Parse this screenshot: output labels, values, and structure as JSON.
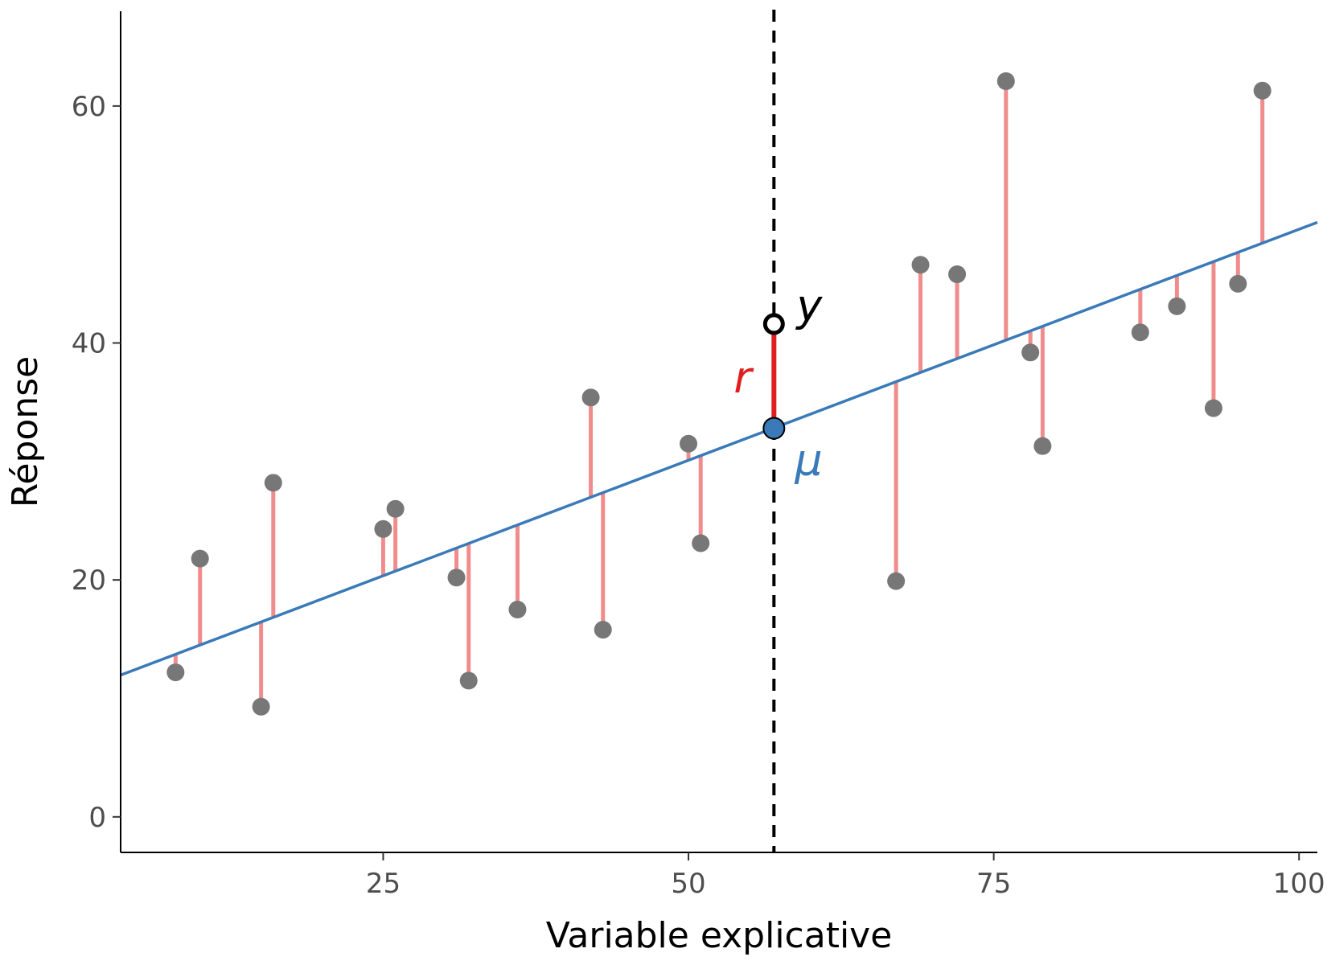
{
  "chart_data": {
    "type": "scatter",
    "title": "",
    "xlabel": "Variable explicative",
    "ylabel": "Réponse",
    "xlim": [
      3.5,
      101.5
    ],
    "ylim": [
      -3,
      68
    ],
    "x_ticks": [
      25,
      50,
      75,
      100
    ],
    "x_tick_labels": [
      "25",
      "50",
      "75",
      "100"
    ],
    "y_ticks": [
      0,
      20,
      40,
      60
    ],
    "y_tick_labels": [
      "0",
      "20",
      "40",
      "60"
    ],
    "grid": false,
    "legend": "none",
    "fit_line": {
      "intercept": 10.6,
      "slope": 0.39
    },
    "points": [
      {
        "x": 8,
        "y": 12.2
      },
      {
        "x": 10,
        "y": 21.8
      },
      {
        "x": 15,
        "y": 9.3
      },
      {
        "x": 16,
        "y": 28.2
      },
      {
        "x": 25,
        "y": 24.3
      },
      {
        "x": 26,
        "y": 26.0
      },
      {
        "x": 31,
        "y": 20.2
      },
      {
        "x": 32,
        "y": 11.5
      },
      {
        "x": 36,
        "y": 17.5
      },
      {
        "x": 42,
        "y": 35.4
      },
      {
        "x": 43,
        "y": 15.8
      },
      {
        "x": 50,
        "y": 31.5
      },
      {
        "x": 51,
        "y": 23.1
      },
      {
        "x": 67,
        "y": 19.9
      },
      {
        "x": 69,
        "y": 46.6
      },
      {
        "x": 72,
        "y": 45.8
      },
      {
        "x": 76,
        "y": 62.1
      },
      {
        "x": 78,
        "y": 39.2
      },
      {
        "x": 79,
        "y": 31.3
      },
      {
        "x": 87,
        "y": 40.9
      },
      {
        "x": 90,
        "y": 43.1
      },
      {
        "x": 93,
        "y": 34.5
      },
      {
        "x": 95,
        "y": 45.0
      },
      {
        "x": 97,
        "y": 61.3
      }
    ],
    "highlight": {
      "x": 57,
      "y": 41.6,
      "mu": 32.8,
      "label_y": "y",
      "label_r": "r",
      "label_mu": "μ"
    },
    "colors": {
      "points": "#777777",
      "residuals": "#f08080",
      "fit_line": "#3a7ab8",
      "highlight_residual": "#e02020",
      "mu_point": "#3a7ab8",
      "label_r": "#e02020",
      "label_mu": "#3a7ab8",
      "label_y": "#000000"
    }
  }
}
